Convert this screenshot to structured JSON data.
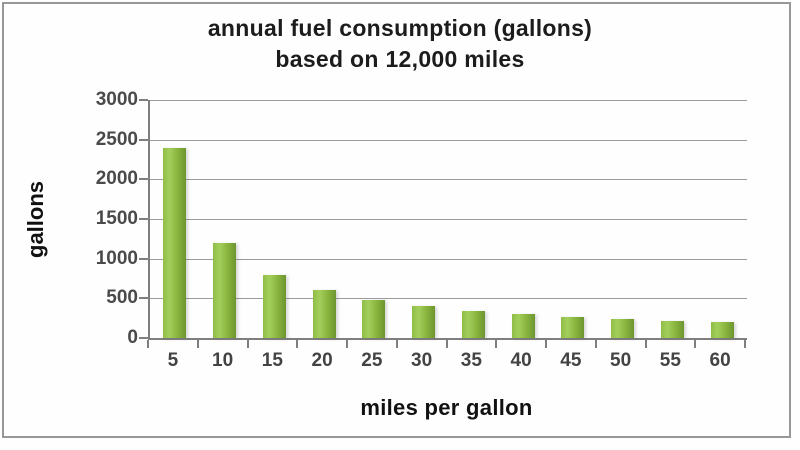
{
  "frame": {
    "border_color": "#979797",
    "background_color": "#fefefe"
  },
  "chart_data": {
    "type": "bar",
    "title": "annual fuel consumption (gallons)",
    "subtitle": "based on 12,000 miles",
    "xlabel": "miles per gallon",
    "ylabel": "gallons",
    "categories": [
      "5",
      "10",
      "15",
      "20",
      "25",
      "30",
      "35",
      "40",
      "45",
      "50",
      "55",
      "60"
    ],
    "values": [
      2400,
      1200,
      800,
      600,
      480,
      400,
      343,
      300,
      267,
      240,
      218,
      200
    ],
    "ylim": [
      0,
      3000
    ],
    "yticks": [
      0,
      500,
      1000,
      1500,
      2000,
      2500,
      3000
    ],
    "grid": true,
    "legend": false,
    "bar_gradient": [
      "#8fbd47",
      "#a3ce5c",
      "#8ab63f",
      "#6d9530"
    ],
    "gridline_color": "#9b9b9b",
    "axis_color": "#7f7f7f",
    "tick_label_color": "#4a4a4a",
    "title_color": "#1c1c1c"
  }
}
